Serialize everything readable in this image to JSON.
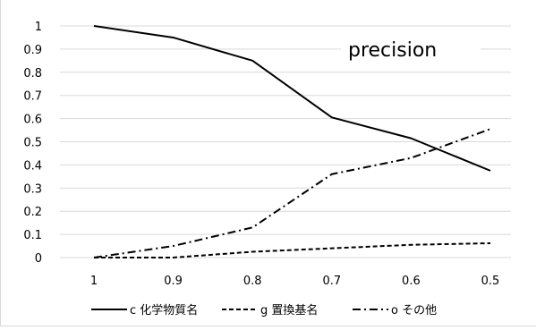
{
  "chart_data": {
    "type": "line",
    "title": "precision",
    "xlabel": "",
    "ylabel": "",
    "categories": [
      "1",
      "0.9",
      "0.8",
      "0.7",
      "0.6",
      "0.5"
    ],
    "y_ticks": [
      "0",
      "0.1",
      "0.2",
      "0.3",
      "0.4",
      "0.5",
      "0.6",
      "0.7",
      "0.8",
      "0.9",
      "1"
    ],
    "ylim": [
      0,
      1
    ],
    "grid": "horizontal",
    "legend_position": "bottom",
    "series": [
      {
        "name": "c 化学物質名",
        "values": [
          1.0,
          0.95,
          0.85,
          0.605,
          0.515,
          0.375
        ],
        "color": "#000000",
        "dash": "solid"
      },
      {
        "name": "g 置換基名",
        "values": [
          0.0,
          0.0,
          0.025,
          0.04,
          0.055,
          0.062
        ],
        "color": "#000000",
        "dash": "dashed"
      },
      {
        "name": "o その他",
        "values": [
          0.0,
          0.05,
          0.13,
          0.36,
          0.43,
          0.555
        ],
        "color": "#000000",
        "dash": "dashdot"
      }
    ]
  }
}
